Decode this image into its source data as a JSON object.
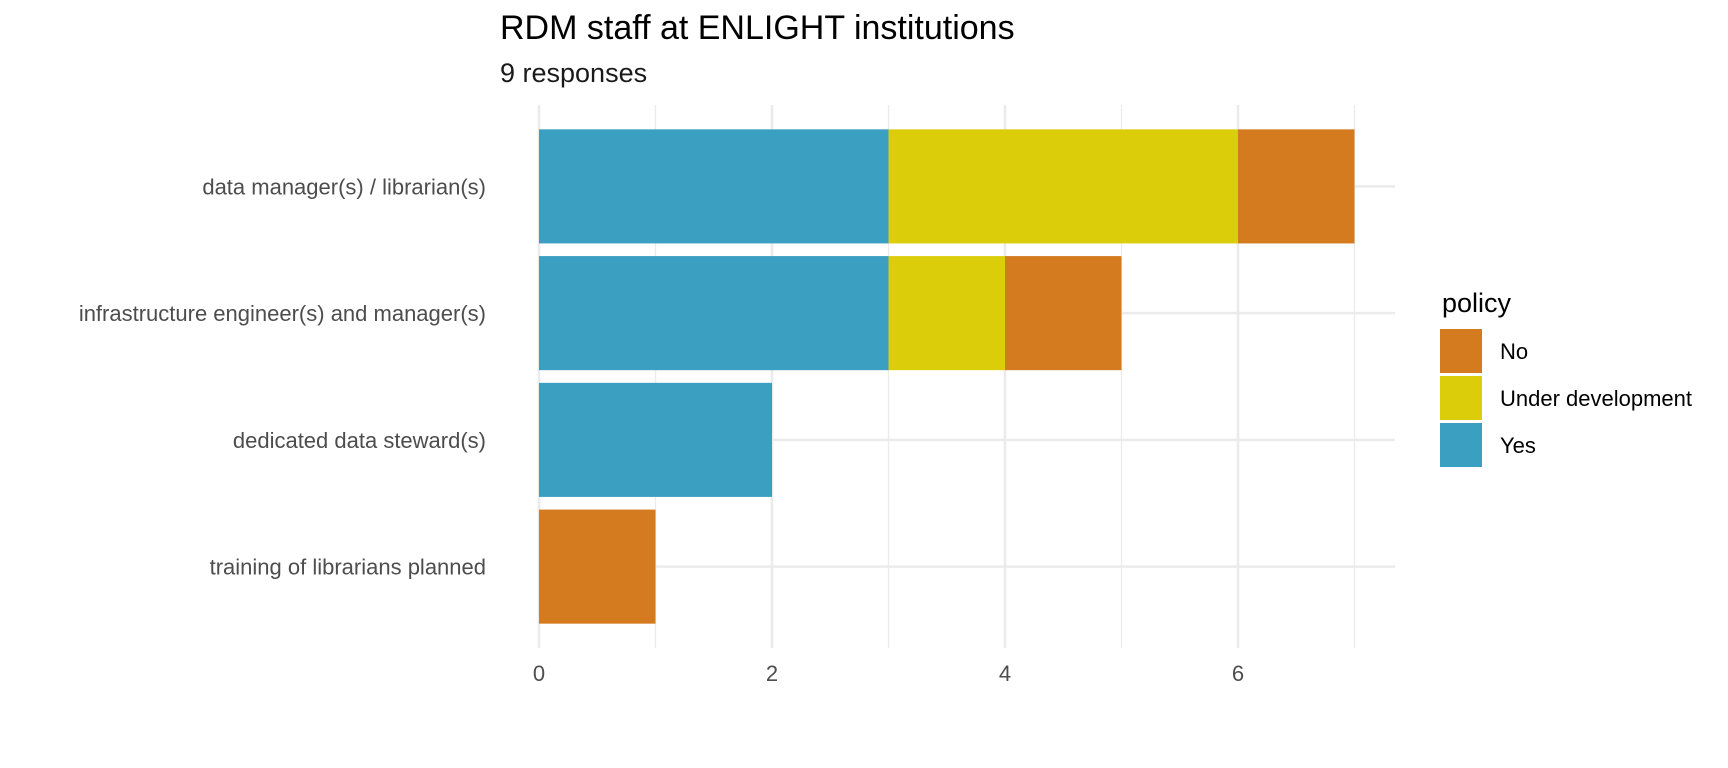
{
  "chart_data": {
    "type": "bar",
    "orientation": "horizontal",
    "stacked": true,
    "title": "RDM staff at ENLIGHT institutions",
    "subtitle": "9 responses",
    "xlabel": "",
    "ylabel": "",
    "categories": [
      "data manager(s) / librarian(s)",
      "infrastructure engineer(s) and manager(s)",
      "dedicated data steward(s)",
      "training of librarians planned"
    ],
    "series": [
      {
        "name": "Yes",
        "color": "#3A9FC0",
        "values": [
          3,
          3,
          2,
          0
        ]
      },
      {
        "name": "Under development",
        "color": "#DCCD0A",
        "values": [
          3,
          1,
          0,
          0
        ]
      },
      {
        "name": "No",
        "color": "#D47B20",
        "values": [
          1,
          1,
          0,
          1
        ]
      }
    ],
    "xlim": [
      0,
      7.35
    ],
    "xticks": [
      0,
      2,
      4,
      6
    ],
    "xtick_labels": [
      "0",
      "2",
      "4",
      "6"
    ],
    "grid": true,
    "legend": {
      "title": "policy",
      "placement": "right",
      "entries": [
        {
          "label": "No",
          "color": "#D47B20"
        },
        {
          "label": "Under development",
          "color": "#DCCD0A"
        },
        {
          "label": "Yes",
          "color": "#3A9FC0"
        }
      ]
    }
  }
}
